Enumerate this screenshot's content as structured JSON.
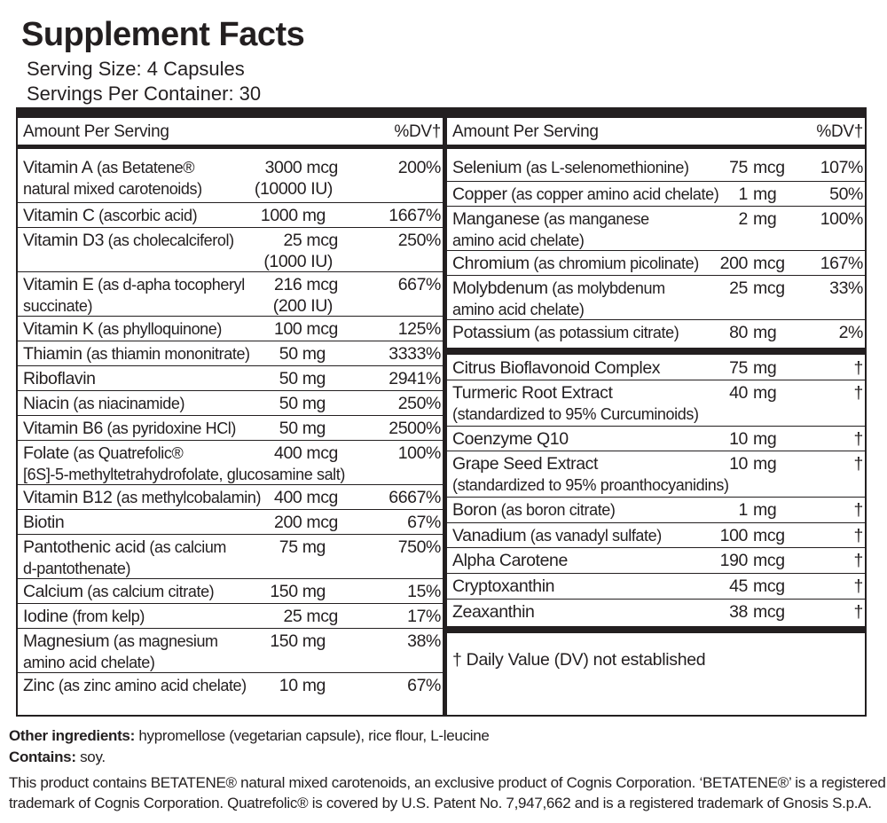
{
  "title": "Supplement Facts",
  "serving_size": "Serving Size: 4 Capsules",
  "servings_per_container": "Servings Per Container: 30",
  "header": {
    "amount_per_serving": "Amount Per Serving",
    "dv": "%DV†"
  },
  "left_rows": [
    {
      "name": "Vitamin A",
      "desc": "(as Betatene® natural mixed carotenoids)",
      "line1": "(as Betatene®",
      "line2": "natural mixed carotenoids)",
      "amount": "3000 mcg",
      "amount2": "(10000 IU)",
      "dv": "200%"
    },
    {
      "name": "Vitamin C",
      "desc": "(ascorbic acid)",
      "amount": "1000 mg",
      "dv": "1667%"
    },
    {
      "name": "Vitamin D3",
      "desc": "(as cholecalciferol)",
      "amount": "25 mcg",
      "amount2": "(1000 IU)",
      "dv": "250%"
    },
    {
      "name": "Vitamin E",
      "line1": "(as d-apha tocopheryl",
      "line2": "succinate)",
      "amount": "216 mcg",
      "amount2": "(200 IU)",
      "dv": "667%"
    },
    {
      "name": "Vitamin K",
      "desc": "(as phylloquinone)",
      "amount": "100 mcg",
      "dv": "125%"
    },
    {
      "name": "Thiamin",
      "desc": "(as thiamin mononitrate)",
      "amount": "50 mg",
      "dv": "3333%"
    },
    {
      "name": "Riboflavin",
      "desc": "",
      "amount": "50 mg",
      "dv": "2941%"
    },
    {
      "name": "Niacin",
      "desc": "(as niacinamide)",
      "amount": "50 mg",
      "dv": "250%"
    },
    {
      "name": "Vitamin B6",
      "desc": "(as pyridoxine HCl)",
      "amount": "50 mg",
      "dv": "2500%"
    },
    {
      "name": "Folate",
      "line1": "(as Quatrefolic®",
      "line2": "[6S]-5-methyltetrahydrofolate, glucosamine salt)",
      "amount": "400 mcg",
      "dv": "100%"
    },
    {
      "name": "Vitamin B12",
      "desc": "(as methylcobalamin)",
      "amount": "400 mcg",
      "dv": "6667%"
    },
    {
      "name": "Biotin",
      "desc": "",
      "amount": "200 mcg",
      "dv": "67%"
    },
    {
      "name": "Pantothenic acid",
      "line1": "(as calcium",
      "line2": "d-pantothenate)",
      "amount": "75 mg",
      "dv": "750%"
    },
    {
      "name": "Calcium",
      "desc": "(as calcium citrate)",
      "amount": "150 mg",
      "dv": "15%"
    },
    {
      "name": "Iodine",
      "desc": "(from kelp)",
      "amount": "25 mcg",
      "dv": "17%"
    },
    {
      "name": "Magnesium",
      "line1": "(as magnesium",
      "line2": "amino acid chelate)",
      "amount": "150 mg",
      "dv": "38%"
    },
    {
      "name": "Zinc",
      "desc": "(as zinc amino acid chelate)",
      "amount": "10 mg",
      "dv": "67%"
    }
  ],
  "right_rows_a": [
    {
      "name": "Selenium",
      "desc": "(as L-selenomethionine)",
      "qty": "75",
      "unit": "mcg",
      "dv": "107%"
    },
    {
      "name": "Copper",
      "desc": "(as copper amino acid chelate)",
      "qty": "1",
      "unit": "mg",
      "dv": "50%"
    },
    {
      "name": "Manganese",
      "line1": "(as manganese",
      "line2": "amino acid chelate)",
      "qty": "2",
      "unit": "mg",
      "dv": "100%"
    },
    {
      "name": "Chromium",
      "desc": "(as chromium picolinate)",
      "qty": "200",
      "unit": "mcg",
      "dv": "167%"
    },
    {
      "name": "Molybdenum",
      "line1": "(as molybdenum",
      "line2": "amino acid chelate)",
      "qty": "25",
      "unit": "mcg",
      "dv": "33%"
    },
    {
      "name": "Potassium",
      "desc": "(as potassium citrate)",
      "qty": "80",
      "unit": "mg",
      "dv": "2%"
    }
  ],
  "right_rows_b": [
    {
      "name": "Citrus Bioflavonoid Complex",
      "desc": "",
      "qty": "75",
      "unit": "mg",
      "dv": "†"
    },
    {
      "name": "Turmeric Root Extract",
      "line2": "(standardized to 95% Curcuminoids)",
      "qty": "40",
      "unit": "mg",
      "dv": "†"
    },
    {
      "name": "Coenzyme Q10",
      "desc": "",
      "qty": "10",
      "unit": "mg",
      "dv": "†"
    },
    {
      "name": "Grape Seed Extract",
      "line2": "(standardized to 95% proanthocyanidins)",
      "qty": "10",
      "unit": "mg",
      "dv": "†"
    },
    {
      "name": "Boron",
      "desc": "(as boron citrate)",
      "qty": "1",
      "unit": "mg",
      "dv": "†"
    },
    {
      "name": "Vanadium",
      "desc": "(as vanadyl sulfate)",
      "qty": "100",
      "unit": "mcg",
      "dv": "†"
    },
    {
      "name": "Alpha Carotene",
      "desc": "",
      "qty": "190",
      "unit": "mcg",
      "dv": "†"
    },
    {
      "name": "Cryptoxanthin",
      "desc": "",
      "qty": "45",
      "unit": "mcg",
      "dv": "†"
    },
    {
      "name": "Zeaxanthin",
      "desc": "",
      "qty": "38",
      "unit": "mcg",
      "dv": "†"
    }
  ],
  "dv_note": "† Daily Value (DV) not established",
  "footer": {
    "other_label": "Other ingredients:",
    "other_text": " hypromellose (vegetarian capsule), rice flour, L-leucine",
    "contains_label": "Contains:",
    "contains_text": " soy.",
    "legal1": "This product contains BETATENE® natural mixed carotenoids, an exclusive product of Cognis Corporation. ‘BETATENE®’ is a registered",
    "legal2": "trademark of Cognis Corporation. Quatrefolic® is covered by U.S. Patent No. 7,947,662 and is a registered trademark of Gnosis S.p.A."
  }
}
